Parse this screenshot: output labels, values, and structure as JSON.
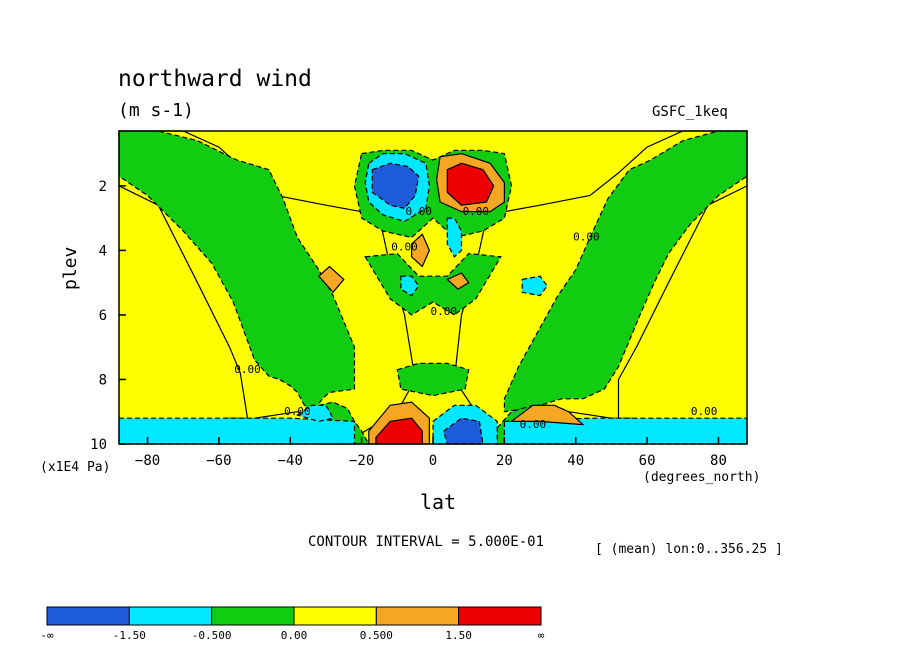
{
  "title": "northward wind",
  "units": "(m s-1)",
  "dataset": "GSFC_1keq",
  "ylabel": "plev",
  "yunits": "(x1E4 Pa)",
  "xlabel": "lat",
  "xunits": "(degrees_north)",
  "contour_interval": "CONTOUR INTERVAL = 5.000E-01",
  "mean_note": "[ (mean) lon:0..356.25 ]",
  "colorbar": {
    "colors": [
      "#1e5bd9",
      "#00e8ff",
      "#11cc11",
      "#ffff00",
      "#f5a623",
      "#ee0000"
    ],
    "labels": [
      "-∞",
      "-1.50",
      "-0.500",
      "0.00",
      "0.500",
      "1.50",
      "∞"
    ]
  },
  "chart_data": {
    "type": "heatmap",
    "title": "northward wind",
    "subtitle": "(m s-1)",
    "xlabel": "lat",
    "ylabel": "plev",
    "x_units": "(degrees_north)",
    "y_units": "(x1E4 Pa)",
    "xlim": [
      -88,
      88
    ],
    "ylim": [
      10,
      0.3
    ],
    "x_ticks": [
      -80,
      -60,
      -40,
      -20,
      0,
      20,
      40,
      60,
      80
    ],
    "y_ticks": [
      2,
      4,
      6,
      8,
      10
    ],
    "contour_label": "0.00",
    "levels": [
      -1.5,
      -0.5,
      0.0,
      0.5,
      1.5
    ],
    "regions": [
      {
        "level": 0.25,
        "x": [
          -88,
          -88,
          -77,
          -66,
          -57,
          -54,
          -52,
          -58,
          -55,
          -50,
          -38,
          -30,
          -26,
          -25,
          -10,
          -5,
          -8,
          -12,
          -15,
          -20,
          -30,
          -44,
          -52,
          -60,
          -70,
          -88
        ],
        "y": [
          0.3,
          2.0,
          2.6,
          5.0,
          7.0,
          7.8,
          9.2,
          9.2,
          9.3,
          9.2,
          9.0,
          9.2,
          10.0,
          10.0,
          9.0,
          8.0,
          6.0,
          4.5,
          3.0,
          2.8,
          2.6,
          2.3,
          1.6,
          0.8,
          0.3,
          0.3
        ]
      },
      {
        "level": 0.25,
        "x": [
          88,
          88,
          77,
          66,
          57,
          52,
          52,
          56,
          50,
          38,
          30,
          22,
          12,
          6,
          8,
          12,
          15,
          20,
          30,
          44,
          52,
          60,
          70,
          88
        ],
        "y": [
          0.3,
          2.0,
          2.6,
          5.0,
          7.0,
          8.0,
          9.2,
          9.2,
          9.2,
          9.0,
          9.2,
          10.0,
          9.0,
          8.0,
          6.0,
          4.5,
          3.0,
          2.8,
          2.6,
          2.3,
          1.6,
          0.8,
          0.3,
          0.3
        ]
      },
      {
        "level": -0.25,
        "x": [
          -88,
          -77,
          -66,
          -55,
          -46,
          -42,
          -38,
          -32,
          -28,
          -22,
          -22,
          -29,
          -31,
          -33,
          -35,
          -36,
          -38,
          -40,
          -43,
          -46,
          -50,
          -56,
          -62,
          -70,
          -80,
          -88
        ],
        "y": [
          0.3,
          0.3,
          0.6,
          1.2,
          1.5,
          2.4,
          3.6,
          4.6,
          5.4,
          7.0,
          8.3,
          8.4,
          8.6,
          8.9,
          8.95,
          8.8,
          8.4,
          8.2,
          8.0,
          7.9,
          7.4,
          5.6,
          4.4,
          3.4,
          2.3,
          1.7
        ]
      },
      {
        "level": -0.25,
        "x": [
          88,
          80,
          70,
          61,
          55,
          49,
          44,
          40,
          35,
          30,
          24,
          20,
          20,
          26,
          30,
          36,
          42,
          48,
          52,
          55,
          58,
          62,
          66,
          72,
          80,
          88
        ],
        "y": [
          0.3,
          0.3,
          0.6,
          1.2,
          1.5,
          2.4,
          3.6,
          4.6,
          5.4,
          6.4,
          7.6,
          8.6,
          9.0,
          8.9,
          8.8,
          8.6,
          8.6,
          8.3,
          7.6,
          6.8,
          6.0,
          5.0,
          4.1,
          3.2,
          2.3,
          1.7
        ]
      },
      {
        "level": -0.25,
        "x": [
          -20,
          -14,
          -6,
          0,
          6,
          14,
          20,
          22,
          20,
          14,
          6,
          0,
          -6,
          -14,
          -20,
          -22
        ],
        "y": [
          1.0,
          0.9,
          0.9,
          1.2,
          0.9,
          0.9,
          1.0,
          2.0,
          3.0,
          3.4,
          3.6,
          3.0,
          3.6,
          3.4,
          3.0,
          2.0
        ]
      },
      {
        "level": -0.25,
        "x": [
          -19,
          -10,
          -4,
          4,
          10,
          19,
          12,
          6,
          0,
          -6,
          -12
        ],
        "y": [
          4.2,
          4.1,
          4.8,
          4.8,
          4.1,
          4.2,
          5.5,
          6.0,
          5.6,
          6.0,
          5.5
        ]
      },
      {
        "level": -0.25,
        "x": [
          -10,
          -4,
          4,
          10,
          9,
          0,
          -9
        ],
        "y": [
          7.7,
          7.5,
          7.5,
          7.7,
          8.3,
          8.5,
          8.3
        ]
      },
      {
        "level": -0.25,
        "x": [
          -32,
          -28,
          -24,
          -22,
          -20,
          -18,
          -18,
          -32
        ],
        "y": [
          8.8,
          8.7,
          8.9,
          9.3,
          9.6,
          10.0,
          10.0,
          10.0
        ]
      },
      {
        "level": -0.25,
        "x": [
          18,
          22,
          28,
          34,
          38,
          42,
          42,
          18
        ],
        "y": [
          9.5,
          9.0,
          8.8,
          8.8,
          9.0,
          9.4,
          10.0,
          10.0
        ]
      },
      {
        "level": -1.0,
        "x": [
          -18,
          -14,
          -8,
          -2,
          -1,
          -2,
          -8,
          -14,
          -18,
          -19
        ],
        "y": [
          1.3,
          1.0,
          1.0,
          1.3,
          2.0,
          2.7,
          3.1,
          2.9,
          2.5,
          1.9
        ]
      },
      {
        "level": -1.0,
        "x": [
          4,
          6,
          8,
          8,
          6,
          4
        ],
        "y": [
          3.0,
          3.0,
          3.4,
          4.0,
          4.2,
          3.8
        ]
      },
      {
        "level": -1.0,
        "x": [
          -9,
          -6,
          -4,
          -6,
          -9
        ],
        "y": [
          4.8,
          4.8,
          5.1,
          5.4,
          5.2
        ]
      },
      {
        "level": -1.0,
        "x": [
          25,
          30,
          32,
          30,
          25
        ],
        "y": [
          4.9,
          4.8,
          5.1,
          5.4,
          5.3
        ]
      },
      {
        "level": -1.0,
        "x": [
          -88,
          -40,
          -22,
          -22,
          -88
        ],
        "y": [
          9.2,
          9.2,
          9.3,
          10.0,
          10.0
        ]
      },
      {
        "level": -1.0,
        "x": [
          20,
          44,
          88,
          88,
          20
        ],
        "y": [
          9.3,
          9.2,
          9.2,
          10.0,
          10.0
        ]
      },
      {
        "level": -1.0,
        "x": [
          -38,
          -34,
          -30,
          -28,
          -32
        ],
        "y": [
          9.1,
          8.8,
          8.8,
          9.2,
          9.3
        ]
      },
      {
        "level": -1.0,
        "x": [
          0,
          6,
          12,
          18,
          18,
          0
        ],
        "y": [
          9.3,
          8.8,
          8.8,
          9.3,
          10.0,
          10.0
        ]
      },
      {
        "level": -2.0,
        "x": [
          -17,
          -12,
          -7,
          -4,
          -5,
          -8,
          -12,
          -17
        ],
        "y": [
          1.5,
          1.3,
          1.4,
          1.7,
          2.3,
          2.7,
          2.6,
          2.2
        ]
      },
      {
        "level": -2.0,
        "x": [
          3,
          8,
          13,
          14,
          10,
          4
        ],
        "y": [
          9.6,
          9.2,
          9.3,
          10.0,
          10.0,
          10.0
        ]
      },
      {
        "level": 1.0,
        "x": [
          2,
          8,
          16,
          20,
          20,
          16,
          8,
          2,
          1
        ],
        "y": [
          1.1,
          1.0,
          1.3,
          1.9,
          2.5,
          2.8,
          2.8,
          2.5,
          1.8
        ]
      },
      {
        "level": 1.0,
        "x": [
          -6,
          -3,
          -1,
          -3,
          -6
        ],
        "y": [
          3.8,
          3.5,
          4.0,
          4.5,
          4.2
        ]
      },
      {
        "level": 1.0,
        "x": [
          -32,
          -29,
          -25,
          -28
        ],
        "y": [
          4.8,
          4.5,
          4.9,
          5.3
        ]
      },
      {
        "level": 1.0,
        "x": [
          4,
          8,
          10,
          7
        ],
        "y": [
          4.9,
          4.7,
          5.0,
          5.2
        ]
      },
      {
        "level": 1.0,
        "x": [
          -18,
          -12,
          -6,
          -1,
          -1,
          -18
        ],
        "y": [
          9.6,
          8.8,
          8.7,
          9.2,
          10.0,
          10.0
        ]
      },
      {
        "level": 1.0,
        "x": [
          22,
          28,
          34,
          38,
          42,
          30
        ],
        "y": [
          9.3,
          8.8,
          8.8,
          9.0,
          9.4,
          9.3
        ]
      },
      {
        "level": 2.0,
        "x": [
          4,
          8,
          14,
          17,
          15,
          8,
          4
        ],
        "y": [
          1.5,
          1.3,
          1.5,
          2.0,
          2.5,
          2.6,
          2.2
        ]
      },
      {
        "level": 2.0,
        "x": [
          -16,
          -12,
          -6,
          -3,
          -3,
          -16
        ],
        "y": [
          9.8,
          9.3,
          9.2,
          9.6,
          10.0,
          10.0
        ]
      }
    ]
  }
}
